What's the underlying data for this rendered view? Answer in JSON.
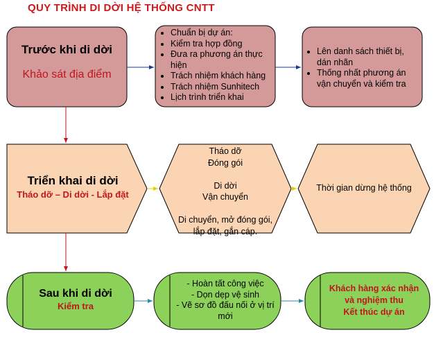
{
  "title": "QUY TRÌNH DI DỜI HỆ THỐNG CNTT",
  "colors": {
    "pink": "#d49a9a",
    "peach": "#fbd5b3",
    "green": "#8bd15a",
    "stroke": "#000000",
    "red_text": "#c0161c",
    "arrow_blue": "#1f3a8a",
    "arrow_red": "#c0161c",
    "arrow_yellow": "#d9d200",
    "arrow_teal": "#2c8aa3"
  },
  "row1": {
    "box1": {
      "title": "Trước khi di dời",
      "subtitle": "Khảo sát địa điểm"
    },
    "box2": {
      "items": [
        "Chuẩn bị dự án:",
        "Kiểm tra hợp đồng",
        "Đưa ra phương án thực hiện",
        "Trách nhiệm khách hàng",
        "Trách nhiệm Sunhitech",
        "Lịch trình triển khai"
      ]
    },
    "box3": {
      "items": [
        "Lên danh sách thiết bị, dán nhãn",
        "Thống nhất phương án vận chuyển và kiểm tra"
      ]
    }
  },
  "row2": {
    "box1": {
      "title": "Triển khai di dời",
      "subtitle": "Tháo dỡ – Di dời - Lắp đặt"
    },
    "box2": {
      "lines": [
        "Tháo dỡ",
        "Đóng gói",
        "",
        "Di dời",
        "Vận chuyển",
        "",
        "Di chuyển, mở đóng gói,",
        "lắp đặt, gắn cáp."
      ]
    },
    "box3": {
      "text": "Thời gian dừng hệ thống"
    }
  },
  "row3": {
    "box1": {
      "title": "Sau khi di dời",
      "subtitle": "Kiểm tra"
    },
    "box2": {
      "lines": [
        "- Hoàn tất công việc",
        "- Dọn dẹp vệ sinh",
        "- Vẽ sơ đồ đấu nối ở vị trí",
        "mới"
      ]
    },
    "box3": {
      "lines": [
        "Khách hàng xác nhận",
        "và nghiệm thu",
        "Kết thúc dự án"
      ]
    }
  }
}
